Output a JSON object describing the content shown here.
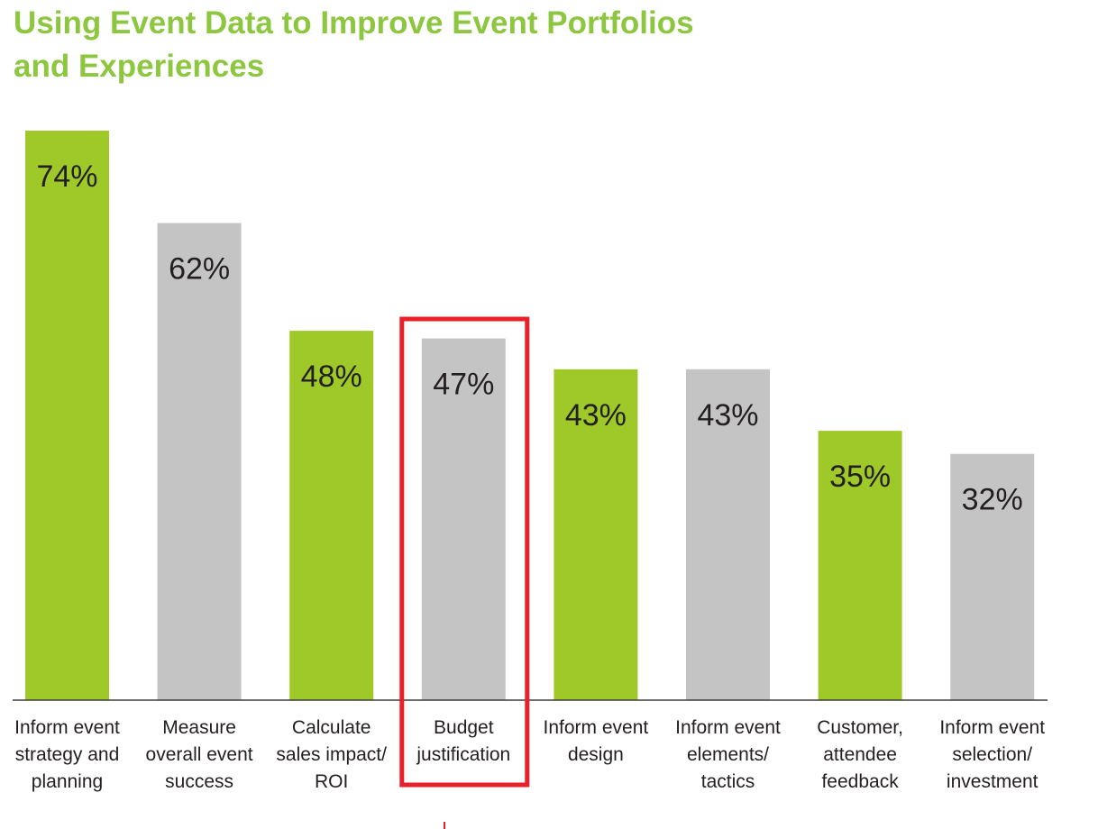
{
  "title": {
    "line1": "Using Event Data to Improve Event Portfolios",
    "line2": "and Experiences"
  },
  "colors": {
    "title": "#8dc63f",
    "bar_green": "#9ec928",
    "bar_gray": "#c4c4c4",
    "highlight_box": "#e8202a",
    "axis": "#3b3b3b",
    "text": "#231f20"
  },
  "chart_data": {
    "type": "bar",
    "title": "Using Event Data to Improve Event Portfolios and Experiences",
    "categories": [
      "Inform event strategy and planning",
      "Measure overall event success",
      "Calculate sales impact/ ROI",
      "Budget justification",
      "Inform event design",
      "Inform event elements/ tactics",
      "Customer, attendee feedback",
      "Inform event selection/ investment"
    ],
    "category_lines": [
      [
        "Inform event",
        "strategy and",
        "planning"
      ],
      [
        "Measure",
        "overall event",
        "success"
      ],
      [
        "Calculate",
        "sales impact/",
        "ROI"
      ],
      [
        "Budget",
        "justification"
      ],
      [
        "Inform event",
        "design"
      ],
      [
        "Inform event",
        "elements/",
        "tactics"
      ],
      [
        "Customer,",
        "attendee",
        "feedback"
      ],
      [
        "Inform event",
        "selection/",
        "investment"
      ]
    ],
    "values": [
      74,
      62,
      48,
      47,
      43,
      43,
      35,
      32
    ],
    "value_labels": [
      "74%",
      "62%",
      "48%",
      "47%",
      "43%",
      "43%",
      "35%",
      "32%"
    ],
    "bar_colors": [
      "green",
      "gray",
      "green",
      "gray",
      "green",
      "gray",
      "green",
      "gray"
    ],
    "highlighted_index": 3,
    "ylim": [
      0,
      74
    ],
    "grid": false,
    "legend": "none",
    "xlabel": "",
    "ylabel": ""
  }
}
